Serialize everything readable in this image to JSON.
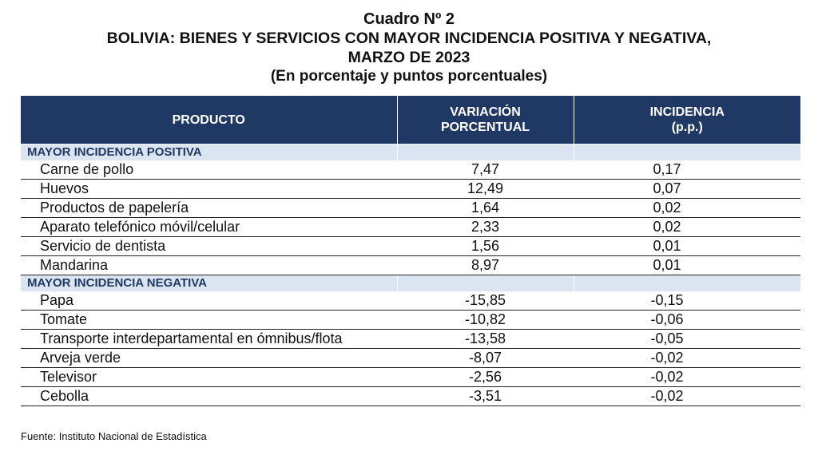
{
  "title": {
    "line1": "Cuadro Nº 2",
    "line2": "BOLIVIA: BIENES Y SERVICIOS CON MAYOR INCIDENCIA POSITIVA Y NEGATIVA,",
    "line3": "MARZO DE 2023",
    "line4": "(En porcentaje y puntos porcentuales)"
  },
  "headers": {
    "product": "PRODUCTO",
    "variation_line1": "VARIACIÓN",
    "variation_line2": "PORCENTUAL",
    "incidence_line1": "INCIDENCIA",
    "incidence_line2": "(p.p.)"
  },
  "positive": {
    "label": "MAYOR INCIDENCIA POSITIVA",
    "rows": [
      {
        "product": "Carne de pollo",
        "variation": "7,47",
        "incidence": "0,17"
      },
      {
        "product": "Huevos",
        "variation": "12,49",
        "incidence": "0,07"
      },
      {
        "product": "Productos de papelería",
        "variation": "1,64",
        "incidence": "0,02"
      },
      {
        "product": "Aparato telefónico móvil/celular",
        "variation": "2,33",
        "incidence": "0,02"
      },
      {
        "product": "Servicio de dentista",
        "variation": "1,56",
        "incidence": "0,01"
      },
      {
        "product": "Mandarina",
        "variation": "8,97",
        "incidence": "0,01"
      }
    ]
  },
  "negative": {
    "label": "MAYOR INCIDENCIA NEGATIVA",
    "rows": [
      {
        "product": "Papa",
        "variation": "-15,85",
        "incidence": "-0,15"
      },
      {
        "product": "Tomate",
        "variation": "-10,82",
        "incidence": "-0,06"
      },
      {
        "product": "Transporte interdepartamental en ómnibus/flota",
        "variation": "-13,58",
        "incidence": "-0,05"
      },
      {
        "product": "Arveja verde",
        "variation": "-8,07",
        "incidence": "-0,02"
      },
      {
        "product": "Televisor",
        "variation": "-2,56",
        "incidence": "-0,02"
      },
      {
        "product": "Cebolla",
        "variation": "-3,51",
        "incidence": "-0,02"
      }
    ]
  },
  "source": "Fuente: Instituto Nacional de Estadística"
}
